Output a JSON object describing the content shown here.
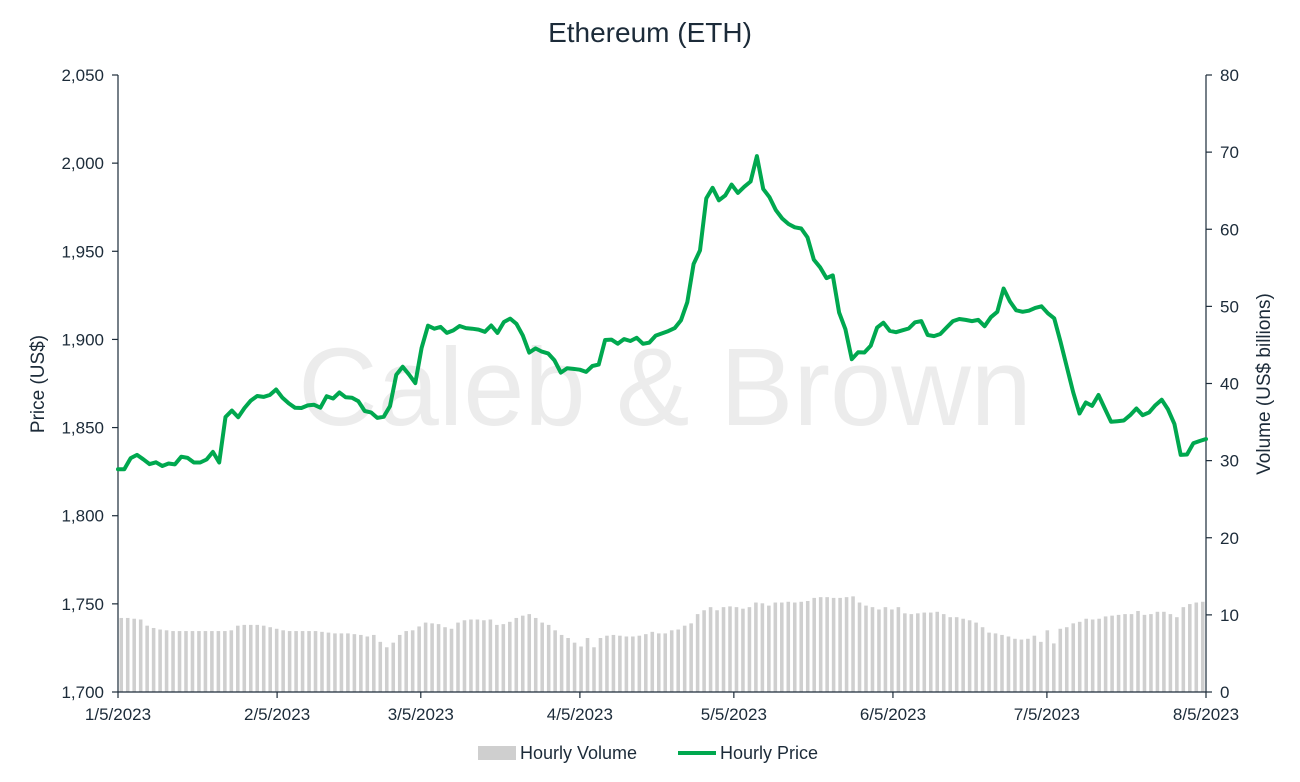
{
  "watermark": "Caleb & Brown",
  "chart_data": {
    "type": "line",
    "title": "Ethereum (ETH)",
    "ylabel": "Price (US$)",
    "y2label": "Volume (US$ billions)",
    "ylim": [
      1700,
      2050
    ],
    "y2lim": [
      0,
      80
    ],
    "y_ticks": [
      "1,700",
      "1,750",
      "1,800",
      "1,850",
      "1,900",
      "1,950",
      "2,000",
      "2,050"
    ],
    "y2_ticks": [
      "0",
      "10",
      "20",
      "30",
      "40",
      "50",
      "60",
      "70",
      "80"
    ],
    "x_ticks": [
      "1/5/2023",
      "2/5/2023",
      "3/5/2023",
      "4/5/2023",
      "5/5/2023",
      "6/5/2023",
      "7/5/2023",
      "8/5/2023"
    ],
    "xlim": [
      "1/5/2023",
      "8/5/2023"
    ],
    "legend_position": "bottom",
    "colors": {
      "price": "#00a84f",
      "volume": "#cfcfcf",
      "text": "#1c2b39"
    },
    "series": [
      {
        "name": "Hourly Volume",
        "kind": "bar",
        "axis": "right",
        "values": [
          9.6,
          9.6,
          9.5,
          9.4,
          8.6,
          8.3,
          8.1,
          8.0,
          7.9,
          7.9,
          7.9,
          7.9,
          7.9,
          7.9,
          7.9,
          7.9,
          7.9,
          8.0,
          8.6,
          8.7,
          8.7,
          8.7,
          8.6,
          8.4,
          8.2,
          8.0,
          7.9,
          7.9,
          7.9,
          7.9,
          7.9,
          7.8,
          7.7,
          7.6,
          7.6,
          7.6,
          7.5,
          7.4,
          7.2,
          7.4,
          6.5,
          5.8,
          6.4,
          7.4,
          7.9,
          8.0,
          8.5,
          9.0,
          8.9,
          8.8,
          8.4,
          8.2,
          9.0,
          9.3,
          9.4,
          9.4,
          9.3,
          9.4,
          8.7,
          8.8,
          9.1,
          9.6,
          9.9,
          10.1,
          9.6,
          9.0,
          8.7,
          8.0,
          7.4,
          7.0,
          6.4,
          5.9,
          7.0,
          5.8,
          7.0,
          7.3,
          7.4,
          7.3,
          7.2,
          7.2,
          7.3,
          7.5,
          7.8,
          7.6,
          7.6,
          8.0,
          8.1,
          8.6,
          8.9,
          10.1,
          10.6,
          11.0,
          10.6,
          11.0,
          11.1,
          11.0,
          10.8,
          11.0,
          11.6,
          11.5,
          11.2,
          11.6,
          11.6,
          11.7,
          11.6,
          11.7,
          11.8,
          12.2,
          12.3,
          12.3,
          12.2,
          12.2,
          12.3,
          12.4,
          11.6,
          11.2,
          11.0,
          10.7,
          11.0,
          10.7,
          11.0,
          10.2,
          10.1,
          10.2,
          10.3,
          10.3,
          10.4,
          10.1,
          9.7,
          9.7,
          9.5,
          9.3,
          9.0,
          8.4,
          7.7,
          7.6,
          7.4,
          7.2,
          6.9,
          6.8,
          6.9,
          7.3,
          6.5,
          8.0,
          6.3,
          8.2,
          8.4,
          8.9,
          9.1,
          9.5,
          9.4,
          9.5,
          9.8,
          9.9,
          10.0,
          10.1,
          10.1,
          10.5,
          10.0,
          10.1,
          10.4,
          10.4,
          10.1,
          9.7,
          11.0,
          11.4,
          11.6,
          11.7
        ]
      },
      {
        "name": "Hourly Price",
        "kind": "line",
        "axis": "left",
        "values": [
          1826.4,
          1826.4,
          1832.7,
          1834.5,
          1832.0,
          1829.3,
          1830.3,
          1828.2,
          1829.6,
          1829.1,
          1833.5,
          1832.8,
          1830.2,
          1830.2,
          1831.9,
          1836.2,
          1830.2,
          1856.0,
          1859.6,
          1855.9,
          1861.1,
          1865.3,
          1867.9,
          1867.4,
          1868.5,
          1871.6,
          1866.9,
          1863.7,
          1861.2,
          1861.1,
          1862.6,
          1862.9,
          1861.3,
          1867.8,
          1866.5,
          1869.9,
          1867.2,
          1866.9,
          1864.9,
          1859.4,
          1858.6,
          1855.5,
          1856.1,
          1862.2,
          1880.0,
          1884.5,
          1880.1,
          1875.2,
          1895.2,
          1907.8,
          1906.1,
          1907.1,
          1903.7,
          1905.1,
          1907.6,
          1906.4,
          1906.1,
          1905.6,
          1904.3,
          1907.9,
          1903.7,
          1909.9,
          1911.8,
          1908.8,
          1902.3,
          1892.5,
          1894.9,
          1893.1,
          1892.1,
          1888.1,
          1881.2,
          1883.6,
          1883.3,
          1882.8,
          1881.6,
          1884.9,
          1885.7,
          1899.7,
          1899.9,
          1897.6,
          1900.2,
          1899.1,
          1900.9,
          1897.5,
          1898.2,
          1902.2,
          1903.4,
          1904.7,
          1906.4,
          1910.9,
          1921.1,
          1942.8,
          1950.5,
          1980.0,
          1986.0,
          1978.9,
          1981.7,
          1987.8,
          1983.1,
          1986.6,
          1989.6,
          2004.0,
          1985.4,
          1980.7,
          1973.3,
          1968.6,
          1965.5,
          1963.6,
          1962.9,
          1957.9,
          1945.3,
          1940.9,
          1934.8,
          1936.3,
          1915.3,
          1905.8,
          1888.8,
          1892.7,
          1892.6,
          1896.4,
          1906.7,
          1909.5,
          1904.9,
          1904.1,
          1905.2,
          1906.2,
          1909.7,
          1910.4,
          1902.5,
          1901.9,
          1903.1,
          1906.8,
          1910.4,
          1911.6,
          1911.1,
          1910.4,
          1911.1,
          1907.5,
          1912.6,
          1915.7,
          1928.9,
          1921.6,
          1916.5,
          1915.7,
          1916.3,
          1917.9,
          1918.8,
          1914.8,
          1912.0,
          1898.7,
          1884.5,
          1870.0,
          1858.0,
          1864.2,
          1862.3,
          1868.5,
          1860.8,
          1853.3,
          1853.6,
          1854.0,
          1857.0,
          1860.8,
          1857.0,
          1858.6,
          1862.7,
          1865.8,
          1860.3,
          1852.1,
          1834.5,
          1834.7,
          1841.1,
          1842.4,
          1843.5
        ]
      }
    ]
  }
}
